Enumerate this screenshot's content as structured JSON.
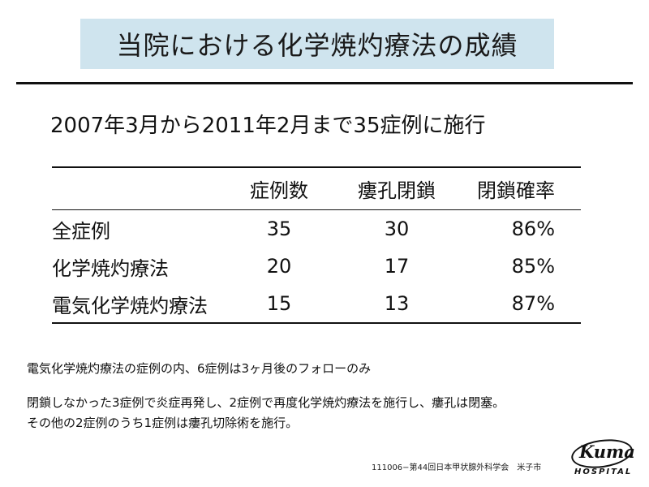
{
  "slide": {
    "title": "当院における化学焼灼療法の成績",
    "subtitle": "2007年3月から2011年2月まで35症例に施行"
  },
  "table": {
    "headers": [
      "",
      "症例数",
      "瘻孔閉鎖",
      "閉鎖確率"
    ],
    "rows": [
      [
        "全症例",
        "35",
        "30",
        "86%"
      ],
      [
        "化学焼灼療法",
        "20",
        "17",
        "85%"
      ],
      [
        "電気化学焼灼療法",
        "15",
        "13",
        "87%"
      ]
    ]
  },
  "notes": [
    "電気化学焼灼療法の症例の内、6症例は3ヶ月後のフォローのみ",
    "閉鎖しなかった3症例で炎症再発し、2症例で再度化学焼灼療法を施行し、瘻孔は閉塞。",
    "その他の2症例のうち1症例は瘻孔切除術を施行。"
  ],
  "footer": "111006−第44回日本甲状腺外科学会　米子市",
  "logo": {
    "wordmark": "Kuma",
    "subtext": "HOSPITAL"
  }
}
